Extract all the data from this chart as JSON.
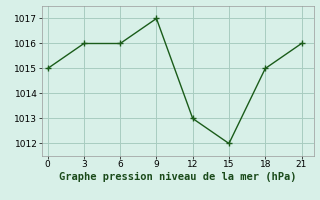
{
  "x": [
    0,
    3,
    6,
    9,
    12,
    15,
    18,
    21
  ],
  "y": [
    1015,
    1016,
    1016,
    1017,
    1013,
    1012,
    1015,
    1016
  ],
  "line_color": "#1a5c1a",
  "marker_color": "#1a5c1a",
  "bg_color": "#d8f0e8",
  "grid_color": "#a8ccc0",
  "xlabel": "Graphe pression niveau de la mer (hPa)",
  "xlabel_color": "#1a4a1a",
  "xlim": [
    -0.5,
    22
  ],
  "ylim": [
    1011.5,
    1017.5
  ],
  "xticks": [
    0,
    3,
    6,
    9,
    12,
    15,
    18,
    21
  ],
  "yticks": [
    1012,
    1013,
    1014,
    1015,
    1016,
    1017
  ],
  "tick_fontsize": 6.5,
  "xlabel_fontsize": 7.5,
  "marker_size": 3,
  "line_width": 1.0
}
